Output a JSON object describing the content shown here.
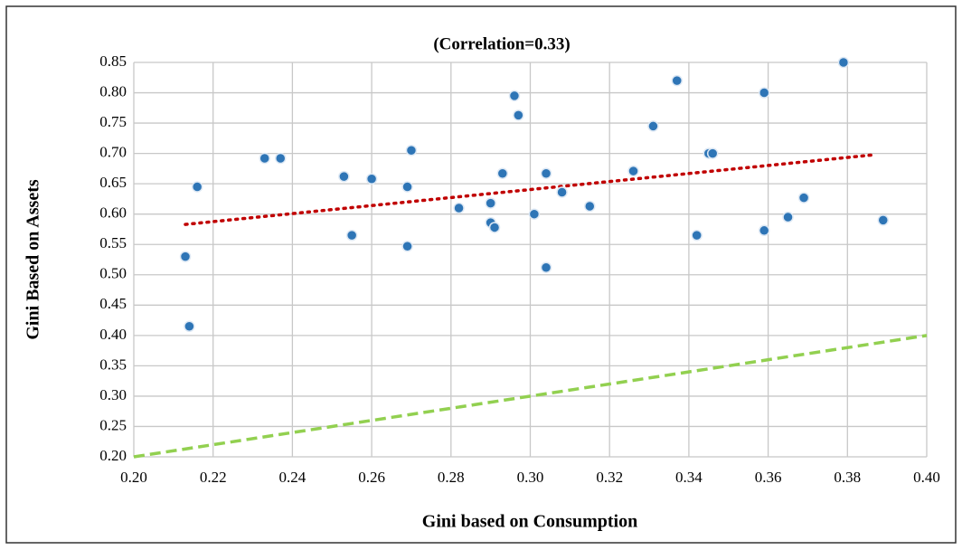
{
  "chart_data": {
    "type": "scatter",
    "title": "(Correlation=0.33)",
    "x_label": "Gini based on Consumption",
    "y_label": "Gini Based on Assets",
    "xlim": [
      0.2,
      0.4
    ],
    "xticks": [
      {
        "value": 0.2,
        "label": "0.20"
      },
      0.22,
      0.24,
      0.26,
      0.28,
      {
        "value": 0.3,
        "label": "0.30"
      },
      0.32,
      0.34,
      0.36,
      0.38,
      {
        "value": 0.4,
        "label": "0.40"
      }
    ],
    "ylim": [
      0.2,
      0.85
    ],
    "yticks": [
      {
        "value": 0.2,
        "label": "0.20"
      },
      0.25,
      {
        "value": 0.3,
        "label": "0.30"
      },
      0.35,
      {
        "value": 0.4,
        "label": "0.40"
      },
      0.45,
      {
        "value": 0.5,
        "label": "0.50"
      },
      0.55,
      {
        "value": 0.6,
        "label": "0.60"
      },
      0.65,
      {
        "value": 0.7,
        "label": "0.70"
      },
      0.75,
      {
        "value": 0.8,
        "label": "0.80"
      },
      0.85
    ],
    "grid": true,
    "series": [
      {
        "color": "#2e75b6",
        "x": [
          0.213,
          0.214,
          0.216,
          0.233,
          0.237,
          0.253,
          0.255,
          0.26,
          0.269,
          0.269,
          0.27,
          0.282,
          0.29,
          0.29,
          0.291,
          0.293,
          0.296,
          0.297,
          0.301,
          0.304,
          0.304,
          0.308,
          0.315,
          0.326,
          0.331,
          0.337,
          0.342,
          0.345,
          0.346,
          0.359,
          0.359,
          0.365,
          0.369,
          0.379,
          0.389
        ],
        "values": [
          0.53,
          0.415,
          0.645,
          0.692,
          0.692,
          0.662,
          0.565,
          0.658,
          0.547,
          0.645,
          0.705,
          0.61,
          0.618,
          0.586,
          0.578,
          0.667,
          0.795,
          0.763,
          0.6,
          0.667,
          0.512,
          0.636,
          0.613,
          0.671,
          0.745,
          0.82,
          0.565,
          0.7,
          0.7,
          0.8,
          0.573,
          0.595,
          0.627,
          0.85,
          0.59
        ]
      }
    ],
    "lines": [
      {
        "color": "#c00000",
        "style": "dotted",
        "x": [
          0.213,
          0.387
        ],
        "y": [
          0.583,
          0.698
        ]
      },
      {
        "color": "#92d050",
        "style": "dashed",
        "x": [
          0.2,
          0.4
        ],
        "y": [
          0.2,
          0.4
        ]
      }
    ]
  }
}
